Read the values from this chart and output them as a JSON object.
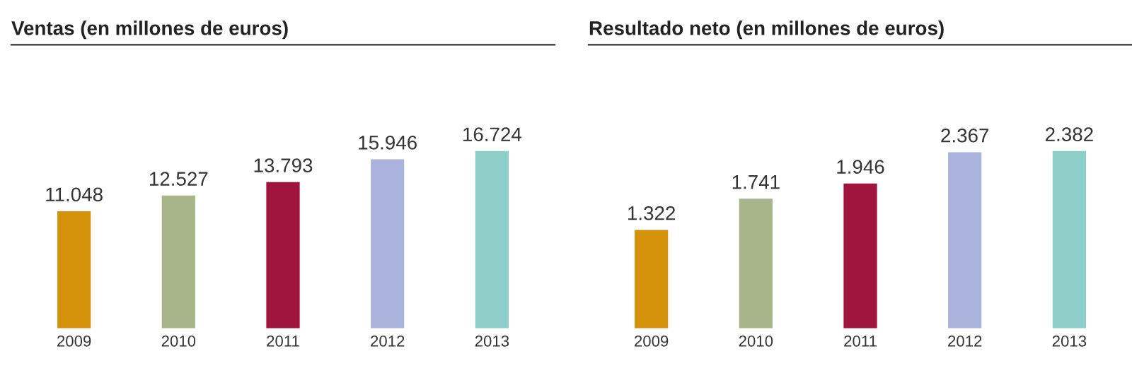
{
  "chart_data": [
    {
      "type": "bar",
      "title": "Ventas (en millones de euros)",
      "categories": [
        "2009",
        "2010",
        "2011",
        "2012",
        "2013"
      ],
      "values": [
        11048,
        12527,
        13793,
        15946,
        16724
      ],
      "value_labels": [
        "11.048",
        "12.527",
        "13.793",
        "15.946",
        "16.724"
      ],
      "colors": [
        "#d4920a",
        "#a8b48a",
        "#a0153e",
        "#aab4dc",
        "#8ecfc9"
      ],
      "tick_labels": "x",
      "grid": false,
      "legend": false
    },
    {
      "type": "bar",
      "title": "Resultado neto (en millones de euros)",
      "categories": [
        "2009",
        "2010",
        "2011",
        "2012",
        "2013"
      ],
      "values": [
        1322,
        1741,
        1946,
        2367,
        2382
      ],
      "value_labels": [
        "1.322",
        "1.741",
        "1.946",
        "2.367",
        "2.382"
      ],
      "colors": [
        "#d4920a",
        "#a8b48a",
        "#a0153e",
        "#aab4dc",
        "#8ecfc9"
      ],
      "tick_labels": "x",
      "grid": false,
      "legend": false
    }
  ]
}
